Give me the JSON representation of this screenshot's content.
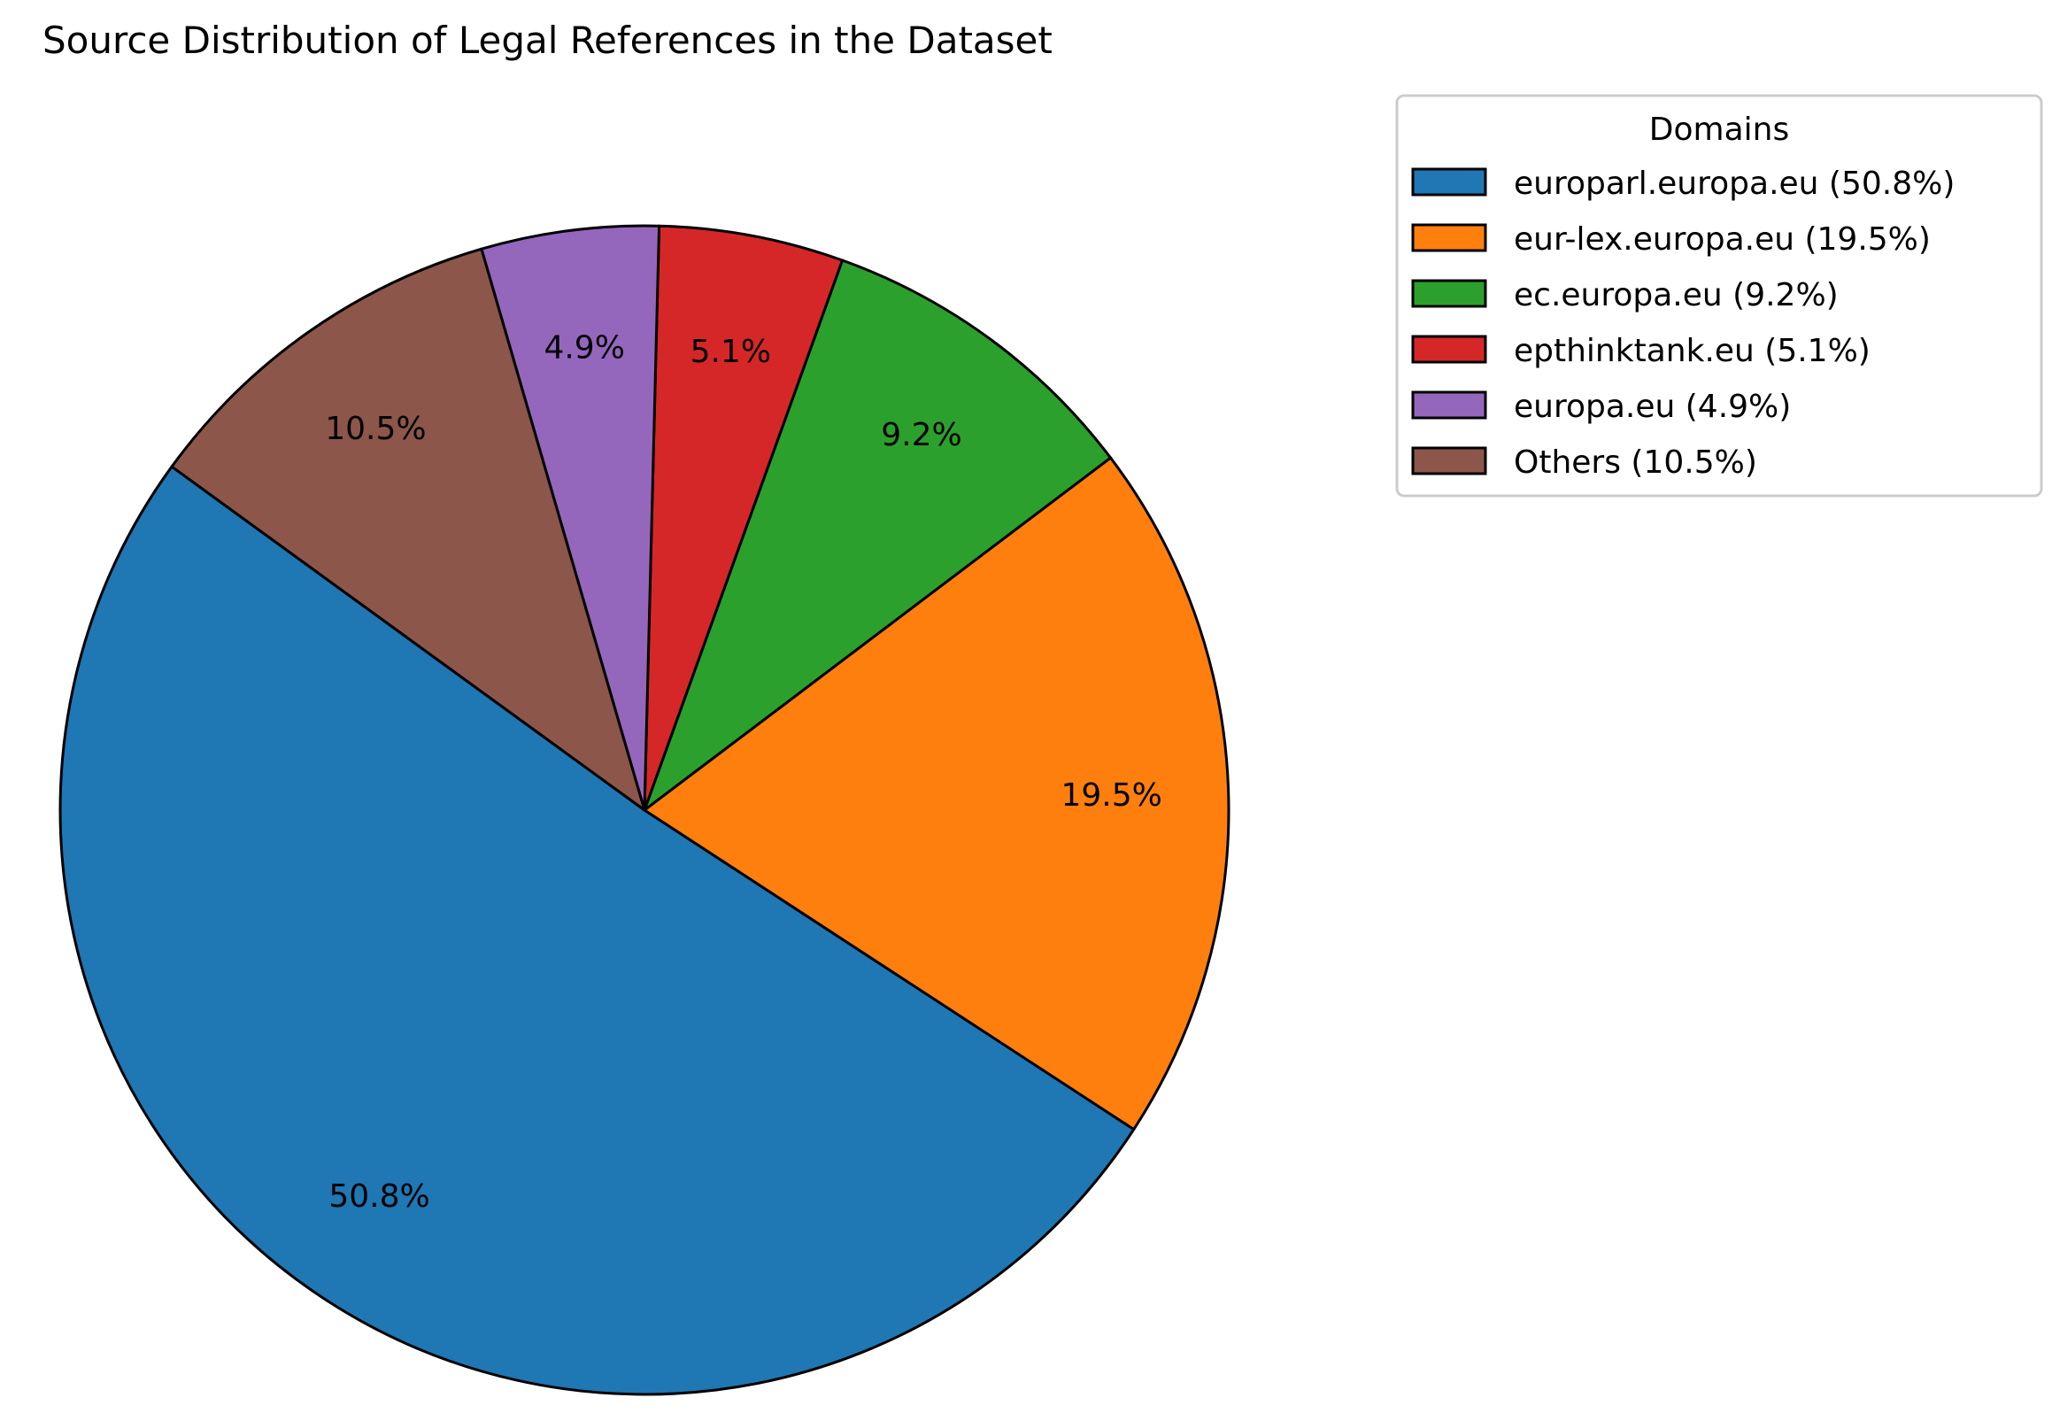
{
  "chart_data": {
    "type": "pie",
    "title": "Source Distribution of Legal References in the Dataset",
    "legend_title": "Domains",
    "legend_position": "top-right",
    "start_angle_deg": 144,
    "direction": "counterclockwise",
    "slices": [
      {
        "label": "europarl.europa.eu",
        "value": 50.8,
        "pct_label": "50.8%",
        "legend_label": "europarl.europa.eu (50.8%)",
        "color": "#1f77b4"
      },
      {
        "label": "eur-lex.europa.eu",
        "value": 19.5,
        "pct_label": "19.5%",
        "legend_label": "eur-lex.europa.eu (19.5%)",
        "color": "#ff7f0e"
      },
      {
        "label": "ec.europa.eu",
        "value": 9.2,
        "pct_label": "9.2%",
        "legend_label": "ec.europa.eu (9.2%)",
        "color": "#2ca02c"
      },
      {
        "label": "epthinktank.eu",
        "value": 5.1,
        "pct_label": "5.1%",
        "legend_label": "epthinktank.eu (5.1%)",
        "color": "#d62728"
      },
      {
        "label": "europa.eu",
        "value": 4.9,
        "pct_label": "4.9%",
        "legend_label": "europa.eu (4.9%)",
        "color": "#9467bd"
      },
      {
        "label": "Others",
        "value": 10.5,
        "pct_label": "10.5%",
        "legend_label": "Others (10.5%)",
        "color": "#8c564b"
      }
    ]
  }
}
